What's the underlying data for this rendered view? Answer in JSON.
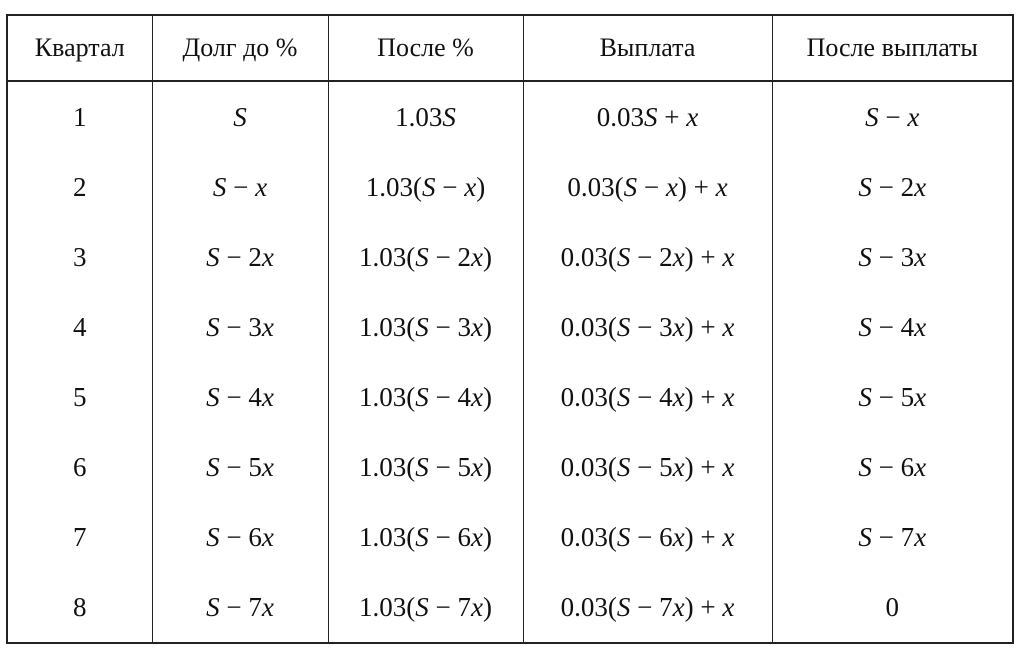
{
  "table": {
    "header": [
      "Квартал",
      "Долг до %",
      "После %",
      "Выплата",
      "После выплаты"
    ],
    "rows": [
      [
        "1",
        "S",
        "1.03S",
        "0.03S + x",
        "S − x"
      ],
      [
        "2",
        "S − x",
        "1.03(S − x)",
        "0.03(S − x) + x",
        "S − 2x"
      ],
      [
        "3",
        "S − 2x",
        "1.03(S − 2x)",
        "0.03(S − 2x) + x",
        "S − 3x"
      ],
      [
        "4",
        "S − 3x",
        "1.03(S − 3x)",
        "0.03(S − 3x) + x",
        "S − 4x"
      ],
      [
        "5",
        "S − 4x",
        "1.03(S − 4x)",
        "0.03(S − 4x) + x",
        "S − 5x"
      ],
      [
        "6",
        "S − 5x",
        "1.03(S − 5x)",
        "0.03(S − 5x) + x",
        "S − 6x"
      ],
      [
        "7",
        "S − 6x",
        "1.03(S − 6x)",
        "0.03(S − 6x) + x",
        "S − 7x"
      ],
      [
        "8",
        "S − 7x",
        "1.03(S − 7x)",
        "0.03(S − 7x) + x",
        "0"
      ]
    ]
  }
}
